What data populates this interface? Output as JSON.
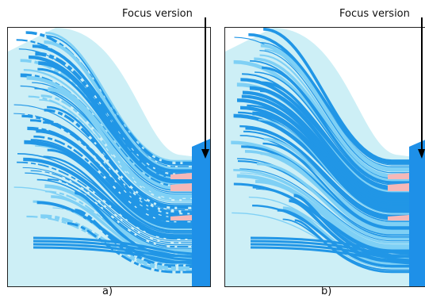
{
  "panels": [
    {
      "id": "a",
      "focus_label": "Focus version",
      "caption": "a)",
      "colors": {
        "background": "#cdeff6",
        "strand": "#2196e6",
        "strand_light": "#7fd0f5",
        "highlight": "#f5b8b8",
        "focus_band": "#1e90e8"
      }
    },
    {
      "id": "b",
      "focus_label": "Focus version",
      "caption": "b)",
      "colors": {
        "background": "#cdeff6",
        "strand": "#2196e6",
        "strand_light": "#7fd0f5",
        "highlight": "#f5b8b8",
        "focus_band": "#1e90e8"
      }
    }
  ]
}
